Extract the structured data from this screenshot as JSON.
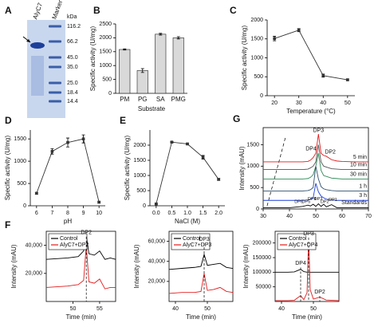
{
  "chart_data": [
    {
      "type": "gel",
      "panel": "A",
      "lanes": [
        "AlyC7",
        "Marker"
      ],
      "unit": "kDa",
      "marker_labels": [
        "116.2",
        "66.2",
        "45.0",
        "35.0",
        "25.0",
        "18.4",
        "14.4"
      ]
    },
    {
      "type": "bar",
      "panel": "B",
      "ylabel": "Specific activity (U/mg)",
      "xlabel": "Substrate",
      "categories": [
        "PM",
        "PG",
        "SA",
        "PMG"
      ],
      "values": [
        1580,
        820,
        2130,
        2000
      ],
      "errors": [
        20,
        70,
        30,
        40
      ],
      "color": "#d9d9d9",
      "ylim": [
        0,
        2500
      ],
      "yticks": [
        0,
        500,
        1000,
        1500,
        2000,
        2500
      ]
    },
    {
      "type": "line",
      "panel": "C",
      "ylabel": "Specific activity (U/mg)",
      "xlabel": "Temperature (°C)",
      "x": [
        20,
        30,
        40,
        50
      ],
      "values": [
        1510,
        1730,
        530,
        420
      ],
      "errors": [
        60,
        40,
        40,
        20
      ],
      "color": "#333333",
      "xlim": [
        17,
        53
      ],
      "xticks": [
        20,
        30,
        40,
        50
      ],
      "ylim": [
        0,
        2000
      ],
      "yticks": [
        0,
        500,
        1000,
        1500,
        2000
      ]
    },
    {
      "type": "line",
      "panel": "D",
      "ylabel": "Specific activity (U/mg)",
      "xlabel": "pH",
      "x": [
        6,
        7,
        8,
        9,
        10
      ],
      "values": [
        280,
        1220,
        1420,
        1500,
        80
      ],
      "errors": [
        20,
        60,
        100,
        90,
        20
      ],
      "color": "#333333",
      "xlim": [
        5.6,
        10.4
      ],
      "xticks": [
        6,
        7,
        8,
        9,
        10
      ],
      "ylim": [
        0,
        1700
      ],
      "yticks": [
        0,
        500,
        1000,
        1500
      ]
    },
    {
      "type": "line",
      "panel": "E",
      "ylabel": "Specific activity (U/mg)",
      "xlabel": "NaCl (M)",
      "x": [
        0,
        0.5,
        1,
        1.5,
        2
      ],
      "values": [
        60,
        2100,
        2040,
        1600,
        870
      ],
      "errors": [
        20,
        20,
        20,
        60,
        30
      ],
      "color": "#333333",
      "xlim": [
        -0.2,
        2.2
      ],
      "xticks": [
        {
          "value": 0,
          "label": "0.0"
        },
        0.5,
        {
          "value": 1,
          "label": "1.0"
        },
        1.5,
        {
          "value": 2,
          "label": "2.0"
        }
      ],
      "ylim": [
        0,
        2500
      ],
      "yticks": [
        0,
        500,
        1000,
        1500,
        2000
      ]
    },
    {
      "type": "chromatogram",
      "panel": "G",
      "ylabel": "Intensity (mAU)",
      "legend": "line-end",
      "x": [
        30,
        40,
        45,
        47,
        48,
        49,
        50,
        51,
        52,
        53,
        54,
        56,
        58,
        60,
        65,
        70
      ],
      "series": [
        {
          "name": "5 min",
          "color": "#e41a1c",
          "values": [
            1100,
            1100,
            1100,
            1110,
            1140,
            1200,
            1300,
            1750,
            1300,
            1250,
            1230,
            1150,
            1120,
            1110,
            1100,
            1100
          ]
        },
        {
          "name": "10 min",
          "color": "#555555",
          "values": [
            920,
            920,
            920,
            930,
            960,
            1000,
            1100,
            1500,
            1100,
            1000,
            980,
            940,
            930,
            920,
            920,
            920
          ]
        },
        {
          "name": "30 min",
          "color": "#2e8b57",
          "values": [
            700,
            700,
            700,
            710,
            740,
            800,
            1000,
            1300,
            900,
            780,
            760,
            720,
            710,
            700,
            700,
            700
          ]
        },
        {
          "name": "1 h",
          "color": "#2f4f6f",
          "values": [
            420,
            420,
            420,
            430,
            450,
            500,
            1000,
            700,
            520,
            470,
            450,
            430,
            420,
            420,
            420,
            420
          ]
        },
        {
          "name": "3 h",
          "color": "#1f3fd6",
          "values": [
            200,
            200,
            200,
            210,
            230,
            260,
            600,
            400,
            300,
            260,
            230,
            210,
            200,
            200,
            200,
            200
          ]
        },
        {
          "name": "Standards",
          "color": "#000000",
          "values": [
            30,
            30,
            60,
            90,
            70,
            110,
            60,
            120,
            60,
            110,
            50,
            100,
            30,
            30,
            30,
            30
          ]
        }
      ],
      "annotations": [
        "DP3",
        "DP4",
        "DP2",
        "DP6",
        "DP5",
        "DP4",
        "DP3",
        "DP2",
        "DP1"
      ],
      "xlim": [
        30,
        70
      ],
      "xticks": [
        30,
        40,
        50,
        60,
        70
      ],
      "ylim": [
        0,
        1900
      ],
      "yticks": [
        0,
        500,
        1000,
        1500
      ]
    },
    {
      "type": "chromatogram",
      "panel": "F",
      "ylabel": "Intensity (mAU)",
      "xlabel": "Time (min)",
      "legend": "upper left",
      "x": [
        45,
        47,
        49,
        51,
        52,
        52.5,
        53,
        54,
        55,
        56,
        57,
        58
      ],
      "series": [
        {
          "name": "Control",
          "color": "#000000",
          "values": [
            30000,
            30500,
            31000,
            32000,
            36000,
            47000,
            34000,
            33000,
            36000,
            30000,
            31000,
            30000
          ]
        },
        {
          "name": "AlyC7+DP2",
          "color": "#e41a1c",
          "values": [
            10000,
            10500,
            11000,
            12000,
            15000,
            40000,
            14000,
            13000,
            16000,
            9000,
            10000,
            10000
          ]
        }
      ],
      "annotations": [
        "DP2"
      ],
      "xlim": [
        45,
        58
      ],
      "xticks": [
        50,
        55
      ],
      "ylim": [
        0,
        50000
      ],
      "yticks": [
        {
          "value": 20000,
          "label": "20,000"
        },
        {
          "value": 40000,
          "label": "40,000"
        }
      ]
    },
    {
      "type": "chromatogram",
      "ylabel": "Intensity (mAU)",
      "xlabel": "Time (min)",
      "legend": "upper left",
      "x": [
        38,
        42,
        46,
        48,
        49,
        50,
        52,
        54,
        56,
        58
      ],
      "series": [
        {
          "name": "Control",
          "color": "#000000",
          "values": [
            32000,
            33000,
            34000,
            35000,
            47000,
            36000,
            37000,
            38000,
            34000,
            33000
          ]
        },
        {
          "name": "AlyC7+DP3",
          "color": "#e41a1c",
          "values": [
            8000,
            9000,
            9000,
            10000,
            28000,
            11000,
            12000,
            14000,
            10000,
            9000
          ]
        }
      ],
      "annotations": [
        "DP3"
      ],
      "xlim": [
        38,
        58
      ],
      "xticks": [
        40,
        50
      ],
      "ylim": [
        0,
        70000
      ],
      "yticks": [
        {
          "value": 20000,
          "label": "20,000"
        },
        {
          "value": 40000,
          "label": "40,000"
        },
        {
          "value": 60000,
          "label": "60,000"
        }
      ]
    },
    {
      "type": "chromatogram",
      "ylabel": "Intensity (mAU)",
      "xlabel": "Time (min)",
      "legend": "upper left",
      "x": [
        38,
        42,
        44,
        46,
        47,
        48,
        48.5,
        49,
        50,
        52,
        54,
        56,
        58
      ],
      "series": [
        {
          "name": "Control",
          "color": "#000000",
          "values": [
            100000,
            100000,
            101000,
            110000,
            102000,
            100000,
            100000,
            100000,
            100000,
            100000,
            100000,
            100000,
            100000
          ]
        },
        {
          "name": "AlyC7+DP4",
          "color": "#e41a1c",
          "values": [
            3000,
            3000,
            4000,
            20000,
            6000,
            30000,
            220000,
            40000,
            8000,
            15000,
            5000,
            4000,
            3000
          ]
        }
      ],
      "annotations": [
        "DP4",
        "DP3",
        "DP2"
      ],
      "xlim": [
        38,
        58
      ],
      "xticks": [
        40,
        50
      ],
      "ylim": [
        0,
        240000
      ],
      "yticks": [
        50000,
        100000,
        150000,
        200000
      ]
    }
  ]
}
